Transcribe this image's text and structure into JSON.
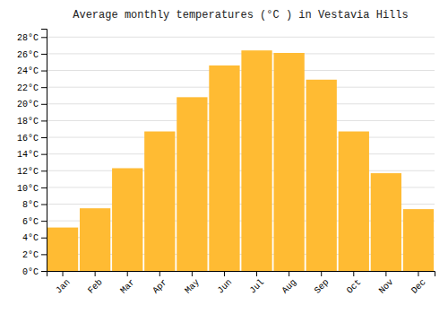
{
  "chart_data": {
    "type": "bar",
    "title": "Average monthly temperatures (°C ) in Vestavia Hills",
    "categories": [
      "Jan",
      "Feb",
      "Mar",
      "Apr",
      "May",
      "Jun",
      "Jul",
      "Aug",
      "Sep",
      "Oct",
      "Nov",
      "Dec"
    ],
    "values": [
      5.2,
      7.5,
      12.3,
      16.7,
      20.8,
      24.6,
      26.4,
      26.1,
      22.9,
      16.7,
      11.7,
      7.4
    ],
    "color": "#FFBB33",
    "ylim": [
      0,
      29
    ],
    "yticks": [
      {
        "value": 0,
        "label": "0°C"
      },
      {
        "value": 2,
        "label": "2°C"
      },
      {
        "value": 4,
        "label": "4°C"
      },
      {
        "value": 6,
        "label": "6°C"
      },
      {
        "value": 8,
        "label": "8°C"
      },
      {
        "value": 10,
        "label": "10°C"
      },
      {
        "value": 12,
        "label": "12°C"
      },
      {
        "value": 14,
        "label": "14°C"
      },
      {
        "value": 16,
        "label": "16°C"
      },
      {
        "value": 18,
        "label": "18°C"
      },
      {
        "value": 20,
        "label": "20°C"
      },
      {
        "value": 22,
        "label": "22°C"
      },
      {
        "value": 24,
        "label": "24°C"
      },
      {
        "value": 26,
        "label": "26°C"
      },
      {
        "value": 28,
        "label": "28°C"
      }
    ],
    "grid": true
  }
}
